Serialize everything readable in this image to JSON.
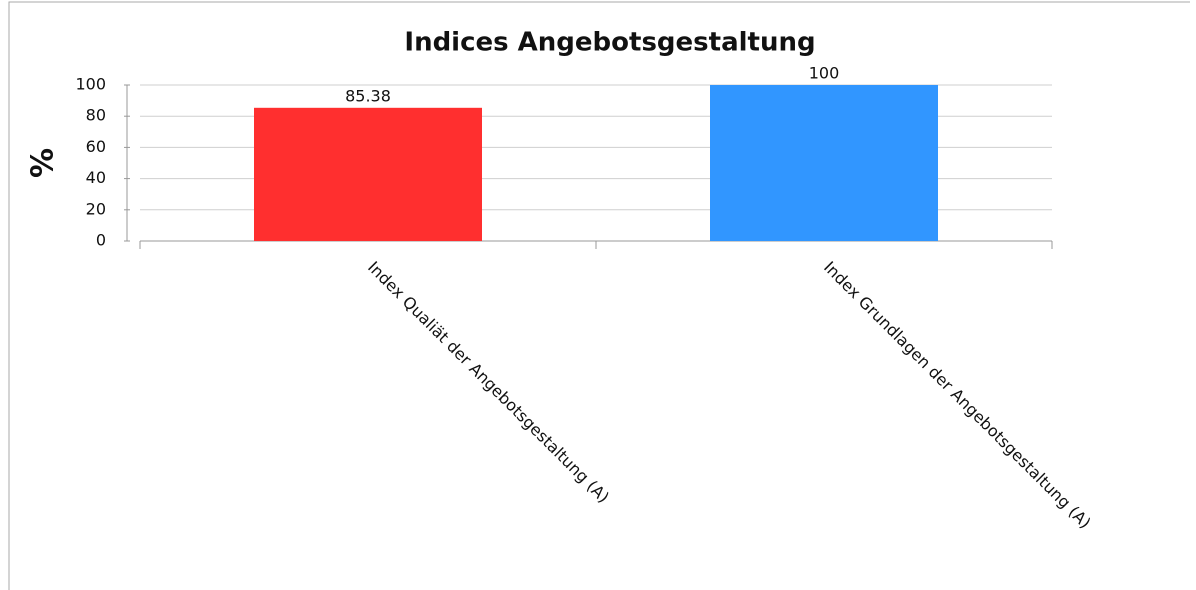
{
  "chart_data": {
    "type": "bar",
    "title": "Indices Angebotsgestaltung",
    "y_label": "%",
    "categories": [
      "Index Qualiät der Angebotsgestaltung (A)",
      "Index Grundlagen der Angebotsgestaltung (A)"
    ],
    "values": [
      85.38,
      100
    ],
    "colors": [
      "#ff2f2f",
      "#3196ff"
    ],
    "ylim": [
      0,
      100
    ],
    "yticks": [
      0,
      20,
      40,
      60,
      80,
      100
    ],
    "grid": true
  }
}
